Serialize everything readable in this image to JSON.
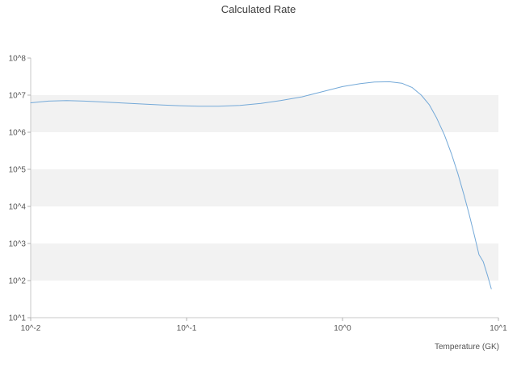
{
  "chart_data": {
    "type": "line",
    "title": "Calculated Rate",
    "xlabel": "Temperature (GK)",
    "ylabel": "",
    "x_scale": "log",
    "y_scale": "log",
    "xlim": [
      0.01,
      10
    ],
    "ylim": [
      10,
      100000000
    ],
    "grid": "alternating horizontal gray bands per decade, no gridlines",
    "legend": "none",
    "x_ticks": [
      {
        "v": 0.01,
        "label": "10^-2"
      },
      {
        "v": 0.1,
        "label": "10^-1"
      },
      {
        "v": 1,
        "label": "10^0"
      },
      {
        "v": 10,
        "label": "10^1"
      }
    ],
    "y_ticks": [
      {
        "v": 100000000,
        "label": "10^8"
      },
      {
        "v": 10000000,
        "label": "10^7"
      },
      {
        "v": 1000000,
        "label": "10^6"
      },
      {
        "v": 100000,
        "label": "10^5"
      },
      {
        "v": 10000,
        "label": "10^4"
      },
      {
        "v": 1000,
        "label": "10^3"
      },
      {
        "v": 100,
        "label": "10^2"
      },
      {
        "v": 10,
        "label": "10^1"
      }
    ],
    "series": [
      {
        "name": "Calculated Rate",
        "points": [
          [
            0.01,
            6200000
          ],
          [
            0.013,
            6900000
          ],
          [
            0.017,
            7100000
          ],
          [
            0.022,
            6900000
          ],
          [
            0.03,
            6500000
          ],
          [
            0.04,
            6100000
          ],
          [
            0.055,
            5700000
          ],
          [
            0.07,
            5400000
          ],
          [
            0.09,
            5200000
          ],
          [
            0.12,
            5000000
          ],
          [
            0.16,
            5000000
          ],
          [
            0.22,
            5300000
          ],
          [
            0.3,
            6000000
          ],
          [
            0.4,
            7100000
          ],
          [
            0.55,
            9000000
          ],
          [
            0.75,
            12500000
          ],
          [
            1.0,
            17000000
          ],
          [
            1.3,
            20500000
          ],
          [
            1.6,
            22500000
          ],
          [
            2.0,
            23000000
          ],
          [
            2.4,
            21000000
          ],
          [
            2.8,
            16000000
          ],
          [
            3.2,
            10000000
          ],
          [
            3.6,
            5500000
          ],
          [
            4.0,
            2500000
          ],
          [
            4.5,
            850000
          ],
          [
            5.0,
            260000
          ],
          [
            5.5,
            75000
          ],
          [
            6.0,
            21000
          ],
          [
            6.5,
            6000
          ],
          [
            7.0,
            1700
          ],
          [
            7.5,
            500
          ],
          [
            8.0,
            320
          ],
          [
            8.5,
            140
          ],
          [
            9.0,
            60
          ]
        ]
      }
    ],
    "colors": {
      "line": "#74a9d8",
      "band": "#f2f2f2",
      "axis": "#c9c9c9",
      "tick": "#b0b0b0",
      "text": "#545454",
      "title": "#3c3c3c",
      "background": "#ffffff"
    }
  }
}
